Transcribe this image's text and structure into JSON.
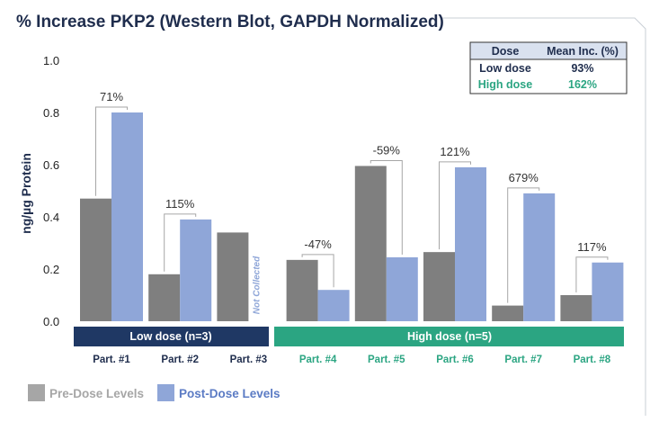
{
  "chart_data": {
    "type": "bar",
    "title": "% Increase PKP2 (Western Blot, GAPDH Normalized)",
    "ylabel": "ng/µg Protein",
    "xlabel": "",
    "ylim": [
      0,
      1.0
    ],
    "yticks": [
      "1.0",
      "0.8",
      "0.6",
      "0.4",
      "0.2",
      "0.0"
    ],
    "categories": [
      "Part. #1",
      "Part. #2",
      "Part. #3",
      "Part. #4",
      "Part. #5",
      "Part. #6",
      "Part. #7",
      "Part. #8"
    ],
    "groups": [
      "low",
      "low",
      "low",
      "high",
      "high",
      "high",
      "high",
      "high"
    ],
    "series": [
      {
        "name": "Pre-Dose Levels",
        "color": "#7f7f7f",
        "values": [
          0.47,
          0.18,
          0.34,
          0.235,
          0.595,
          0.265,
          0.06,
          0.1
        ]
      },
      {
        "name": "Post-Dose Levels",
        "color": "#8fa6d8",
        "values": [
          0.8,
          0.39,
          null,
          0.12,
          0.245,
          0.59,
          0.49,
          0.225
        ]
      }
    ],
    "annotations": [
      "71%",
      "115%",
      null,
      "-47%",
      "-59%",
      "121%",
      "679%",
      "117%"
    ],
    "not_collected_label": "Not Collected",
    "bands": [
      {
        "label": "Low dose (n=3)",
        "color": "#1f3864"
      },
      {
        "label": "High dose (n=5)",
        "color": "#2ba582"
      }
    ],
    "label_colors": {
      "low": "#1f2d4d",
      "high": "#2ba582"
    },
    "legend": [
      {
        "label": "Pre-Dose Levels",
        "swatch": "#a6a6a6",
        "text_color": "#a6a6a6"
      },
      {
        "label": "Post-Dose Levels",
        "swatch": "#8fa6d8",
        "text_color": "#5b7bc4"
      }
    ],
    "table": {
      "headers": [
        "Dose",
        "Mean Inc. (%)"
      ],
      "rows": [
        {
          "dose": "Low dose",
          "value": "93%",
          "color": "#1f2d4d"
        },
        {
          "dose": "High dose",
          "value": "162%",
          "color": "#2ba582"
        }
      ]
    }
  }
}
